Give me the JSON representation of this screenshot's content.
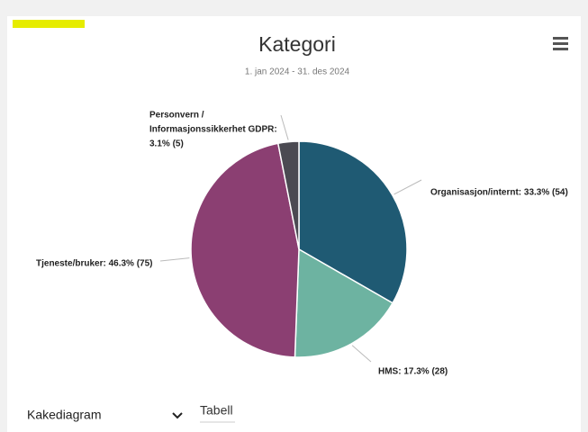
{
  "chart_data": {
    "type": "pie",
    "title": "Kategori",
    "subtitle": "1. jan 2024 - 31. des 2024",
    "values": [
      33.3,
      17.3,
      46.3,
      3.1
    ],
    "value_labels": [
      [
        "Organisasjon/internt: 33.3% (54)"
      ],
      [
        "HMS: 17.3% (28)"
      ],
      [
        "Tjeneste/bruker: 46.3% (75)"
      ],
      [
        "Personvern /",
        "Informasjonssikkerhet GDPR:",
        "3.1% (5)"
      ]
    ],
    "colors": [
      "#1f5a73",
      "#6db3a1",
      "#8b3f72",
      "#4b4a52"
    ]
  },
  "controls": {
    "chart_select": "Kakediagram",
    "table_tab": "Tabell"
  }
}
